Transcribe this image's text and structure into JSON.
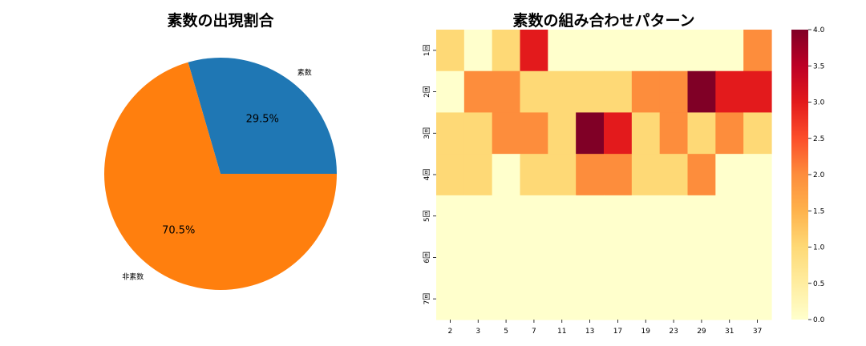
{
  "pie": {
    "title": "素数の出現割合",
    "slices": [
      {
        "label": "素数",
        "pct_label": "29.5%",
        "value": 29.5,
        "color": "#1f77b4"
      },
      {
        "label": "非素数",
        "pct_label": "70.5%",
        "value": 70.5,
        "color": "#ff7f0e"
      }
    ]
  },
  "heatmap": {
    "title": "素数の組み合わせパターン",
    "x_ticks": [
      "2",
      "3",
      "5",
      "7",
      "11",
      "13",
      "17",
      "19",
      "23",
      "29",
      "31",
      "37"
    ],
    "y_ticks": [
      "1回",
      "2回",
      "3回",
      "4回",
      "5回",
      "6回",
      "7回"
    ],
    "colorbar_ticks": [
      "0.0",
      "0.5",
      "1.0",
      "1.5",
      "2.0",
      "2.5",
      "3.0",
      "3.5",
      "4.0"
    ],
    "palette": [
      "#ffffcc",
      "#fed976",
      "#fd8d3c",
      "#e31a1c",
      "#800026"
    ]
  },
  "chart_data": [
    {
      "type": "pie",
      "title": "素数の出現割合",
      "categories": [
        "素数",
        "非素数"
      ],
      "values": [
        29.5,
        70.5
      ],
      "colors": [
        "#1f77b4",
        "#ff7f0e"
      ]
    },
    {
      "type": "heatmap",
      "title": "素数の組み合わせパターン",
      "x": [
        "2",
        "3",
        "5",
        "7",
        "11",
        "13",
        "17",
        "19",
        "23",
        "29",
        "31",
        "37"
      ],
      "y": [
        "1回",
        "2回",
        "3回",
        "4回",
        "5回",
        "6回",
        "7回"
      ],
      "values": [
        [
          1,
          0,
          1,
          3,
          0,
          0,
          0,
          0,
          0,
          0,
          0,
          2
        ],
        [
          0,
          2,
          2,
          1,
          1,
          1,
          1,
          2,
          2,
          4,
          3,
          3
        ],
        [
          1,
          1,
          2,
          2,
          1,
          4,
          3,
          1,
          2,
          1,
          2,
          1
        ],
        [
          1,
          1,
          0,
          1,
          1,
          2,
          2,
          1,
          1,
          2,
          0,
          0
        ],
        [
          0,
          0,
          0,
          0,
          0,
          0,
          0,
          0,
          0,
          0,
          0,
          0
        ],
        [
          0,
          0,
          0,
          0,
          0,
          0,
          0,
          0,
          0,
          0,
          0,
          0
        ],
        [
          0,
          0,
          0,
          0,
          0,
          0,
          0,
          0,
          0,
          0,
          0,
          0
        ]
      ],
      "colormap": "YlOrRd",
      "vmin": 0,
      "vmax": 4,
      "colorbar_ticks": [
        0.0,
        0.5,
        1.0,
        1.5,
        2.0,
        2.5,
        3.0,
        3.5,
        4.0
      ]
    }
  ]
}
